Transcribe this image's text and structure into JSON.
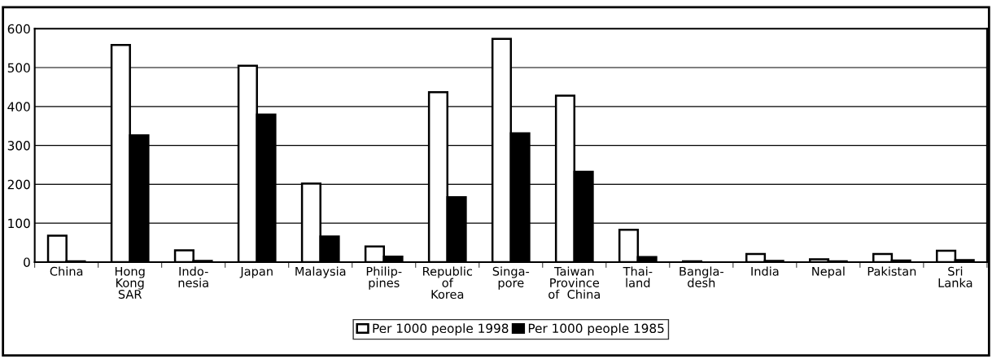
{
  "chart_data": {
    "type": "bar",
    "categories": [
      "China",
      "Hong\nKong\nSAR",
      "Indo-\nnesia",
      "Japan",
      "Malaysia",
      "Philip-\npines",
      "Republic\nof\nKorea",
      "Singa-\npore",
      "Taiwan\nProvince\nof  China",
      "Thai-\nland",
      "Bangla-\ndesh",
      "India",
      "Nepal",
      "Pakistan",
      "Sri\nLanka"
    ],
    "series": [
      {
        "name": "Per 1000 people 1998",
        "color": "#ffffff",
        "values": [
          68,
          558,
          30,
          505,
          202,
          40,
          437,
          574,
          428,
          83,
          2,
          21,
          7,
          21,
          29
        ]
      },
      {
        "name": "Per 1000 people 1985",
        "color": "#000000",
        "values": [
          2,
          326,
          3,
          379,
          66,
          14,
          167,
          331,
          232,
          13,
          null,
          3,
          2,
          4,
          5
        ]
      }
    ],
    "ylim": [
      0,
      600
    ],
    "yticks": [
      0,
      100,
      200,
      300,
      400,
      500,
      600
    ],
    "grid": "y",
    "legend": "bottom"
  }
}
